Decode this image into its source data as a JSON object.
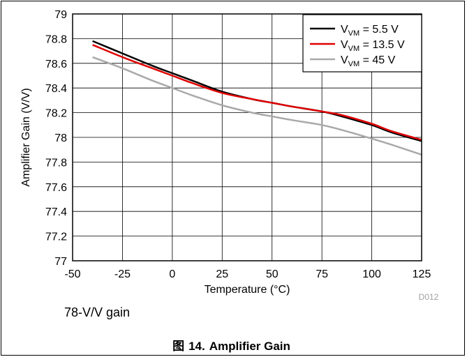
{
  "figure": {
    "note": "78-V/V gain",
    "label_prefix": "图",
    "label_number": "14.",
    "title": "Amplifier Gain",
    "code": "D012"
  },
  "chart_data": {
    "type": "line",
    "xlabel": "Temperature (°C)",
    "ylabel": "Amplifier Gain (V/V)",
    "xlim": [
      -50,
      125
    ],
    "ylim": [
      77,
      79
    ],
    "xticks": [
      -50,
      -25,
      0,
      25,
      50,
      75,
      100,
      125
    ],
    "yticks": [
      77,
      77.2,
      77.4,
      77.6,
      77.8,
      78,
      78.2,
      78.4,
      78.6,
      78.8,
      79
    ],
    "ytick_labels": [
      "77",
      "77.2",
      "77.4",
      "77.6",
      "77.8",
      "78",
      "78.2",
      "78.4",
      "78.6",
      "78.8",
      "79"
    ],
    "grid": true,
    "legend_position": "top-right",
    "series": [
      {
        "name_main": "V",
        "name_sub": "VM",
        "name_rest": " = 5.5 V",
        "color": "#000000",
        "x": [
          -40,
          -25,
          -10,
          0,
          10,
          25,
          40,
          50,
          60,
          75,
          85,
          100,
          110,
          125
        ],
        "y": [
          78.78,
          78.68,
          78.58,
          78.52,
          78.46,
          78.37,
          78.31,
          78.28,
          78.25,
          78.21,
          78.17,
          78.1,
          78.04,
          77.97
        ]
      },
      {
        "name_main": "V",
        "name_sub": "VM",
        "name_rest": " = 13.5 V",
        "color": "#e00000",
        "x": [
          -40,
          -25,
          -10,
          0,
          10,
          25,
          40,
          50,
          60,
          75,
          85,
          100,
          110,
          125
        ],
        "y": [
          78.75,
          78.65,
          78.56,
          78.5,
          78.44,
          78.36,
          78.31,
          78.28,
          78.25,
          78.21,
          78.18,
          78.11,
          78.05,
          77.98
        ]
      },
      {
        "name_main": "V",
        "name_sub": "VM",
        "name_rest": " = 45 V",
        "color": "#a9a9a9",
        "x": [
          -40,
          -25,
          -10,
          0,
          10,
          25,
          40,
          50,
          60,
          75,
          85,
          100,
          110,
          125
        ],
        "y": [
          78.65,
          78.56,
          78.46,
          78.4,
          78.34,
          78.26,
          78.2,
          78.17,
          78.14,
          78.1,
          78.06,
          77.99,
          77.94,
          77.86
        ]
      }
    ]
  }
}
